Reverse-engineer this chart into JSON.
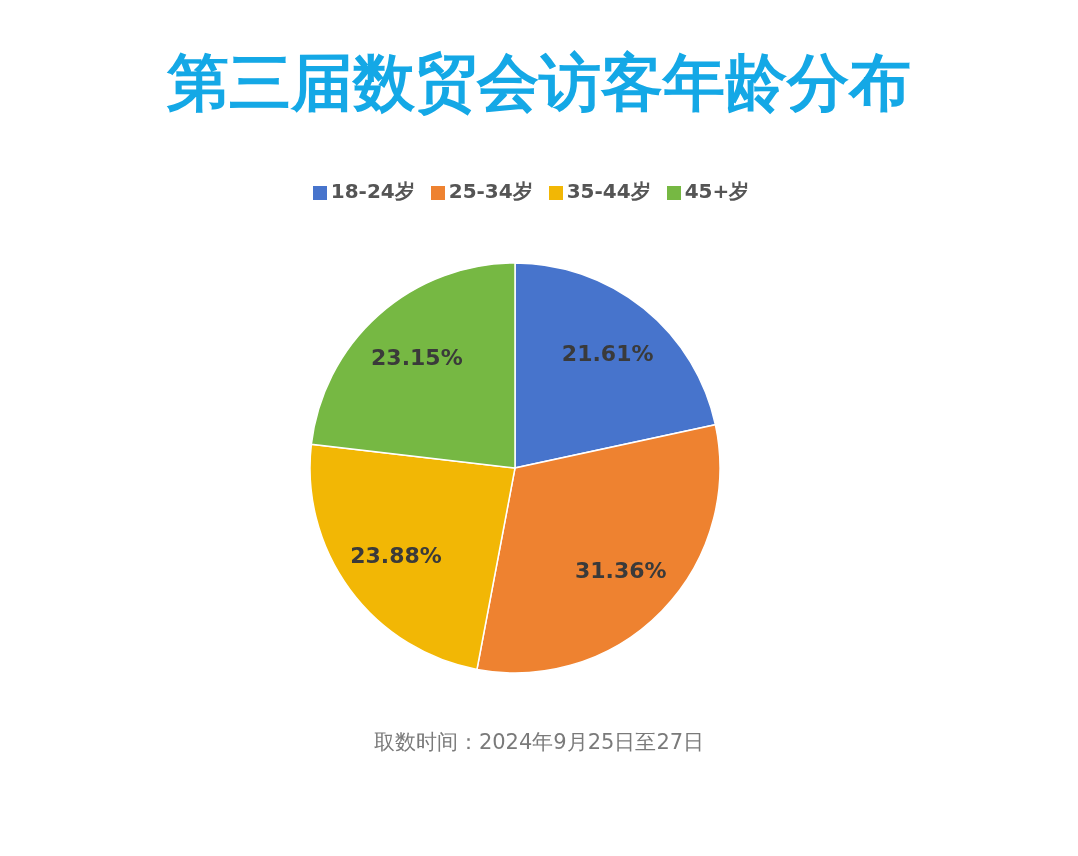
{
  "chart_data": {
    "type": "pie",
    "title": "第三届数贸会访客年龄分布",
    "categories": [
      "18-24岁",
      "25-34岁",
      "35-44岁",
      "45+岁"
    ],
    "values": [
      21.61,
      31.36,
      23.88,
      23.15
    ],
    "value_labels": [
      "21.61%",
      "31.36%",
      "23.88%",
      "23.15%"
    ],
    "colors": [
      "#4774cc",
      "#ee8230",
      "#f2b705",
      "#76b843"
    ],
    "legend": "top",
    "annotations": [
      "取数时间：2024年9月25日至27日"
    ]
  }
}
